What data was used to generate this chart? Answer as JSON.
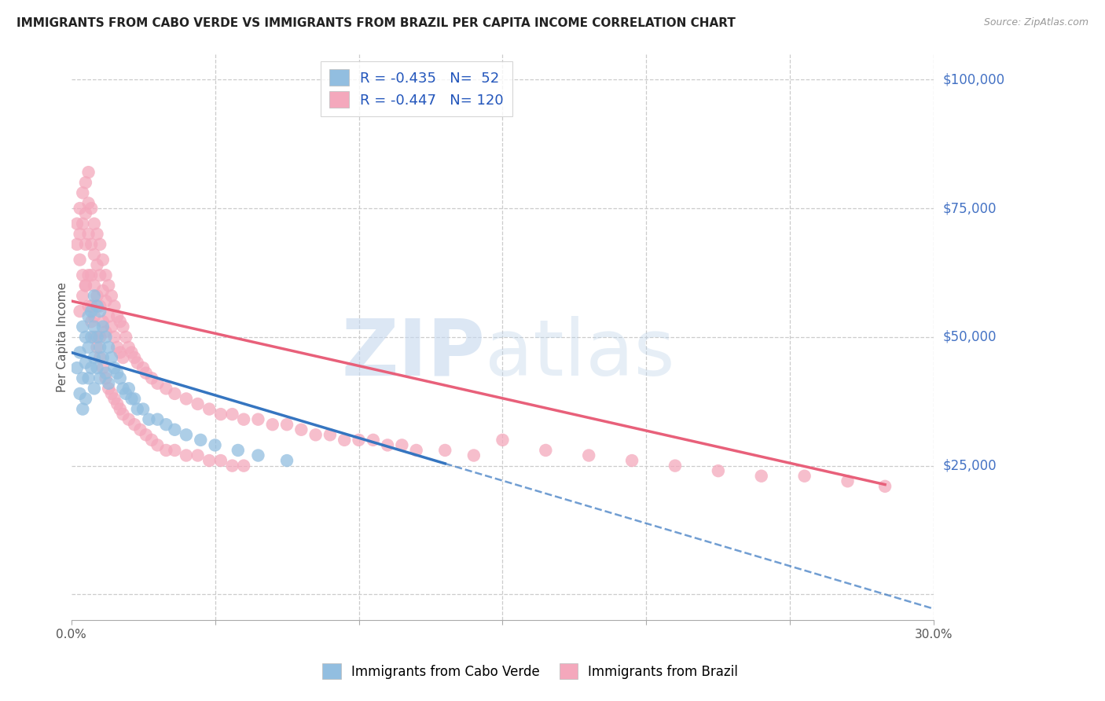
{
  "title": "IMMIGRANTS FROM CABO VERDE VS IMMIGRANTS FROM BRAZIL PER CAPITA INCOME CORRELATION CHART",
  "source": "Source: ZipAtlas.com",
  "ylabel": "Per Capita Income",
  "y_ticks": [
    0,
    25000,
    50000,
    75000,
    100000
  ],
  "y_tick_labels": [
    "",
    "$25,000",
    "$50,000",
    "$75,000",
    "$100,000"
  ],
  "x_min": 0.0,
  "x_max": 0.3,
  "y_min": -5000,
  "y_max": 105000,
  "cabo_verde_R": -0.435,
  "cabo_verde_N": 52,
  "brazil_R": -0.447,
  "brazil_N": 120,
  "cabo_verde_scatter_color": "#92BEE0",
  "brazil_scatter_color": "#F4A8BC",
  "cabo_verde_line_color": "#3575C0",
  "brazil_line_color": "#E8607A",
  "legend_label_1": "Immigrants from Cabo Verde",
  "legend_label_2": "Immigrants from Brazil",
  "cabo_verde_points_x": [
    0.002,
    0.003,
    0.003,
    0.004,
    0.004,
    0.004,
    0.005,
    0.005,
    0.005,
    0.006,
    0.006,
    0.006,
    0.007,
    0.007,
    0.007,
    0.008,
    0.008,
    0.008,
    0.008,
    0.009,
    0.009,
    0.009,
    0.01,
    0.01,
    0.01,
    0.011,
    0.011,
    0.012,
    0.012,
    0.013,
    0.013,
    0.014,
    0.015,
    0.016,
    0.017,
    0.018,
    0.019,
    0.02,
    0.021,
    0.022,
    0.023,
    0.025,
    0.027,
    0.03,
    0.033,
    0.036,
    0.04,
    0.045,
    0.05,
    0.058,
    0.065,
    0.075
  ],
  "cabo_verde_points_y": [
    44000,
    39000,
    47000,
    52000,
    42000,
    36000,
    50000,
    45000,
    38000,
    54000,
    48000,
    42000,
    55000,
    50000,
    44000,
    58000,
    52000,
    46000,
    40000,
    56000,
    50000,
    44000,
    55000,
    48000,
    42000,
    52000,
    46000,
    50000,
    43000,
    48000,
    41000,
    46000,
    44000,
    43000,
    42000,
    40000,
    39000,
    40000,
    38000,
    38000,
    36000,
    36000,
    34000,
    34000,
    33000,
    32000,
    31000,
    30000,
    29000,
    28000,
    27000,
    26000
  ],
  "brazil_points_x": [
    0.002,
    0.002,
    0.003,
    0.003,
    0.003,
    0.004,
    0.004,
    0.004,
    0.005,
    0.005,
    0.005,
    0.005,
    0.006,
    0.006,
    0.006,
    0.006,
    0.007,
    0.007,
    0.007,
    0.007,
    0.008,
    0.008,
    0.008,
    0.008,
    0.009,
    0.009,
    0.009,
    0.01,
    0.01,
    0.01,
    0.01,
    0.011,
    0.011,
    0.011,
    0.012,
    0.012,
    0.012,
    0.013,
    0.013,
    0.014,
    0.014,
    0.015,
    0.015,
    0.016,
    0.016,
    0.017,
    0.017,
    0.018,
    0.018,
    0.019,
    0.02,
    0.021,
    0.022,
    0.023,
    0.025,
    0.026,
    0.028,
    0.03,
    0.033,
    0.036,
    0.04,
    0.044,
    0.048,
    0.052,
    0.056,
    0.06,
    0.065,
    0.07,
    0.075,
    0.08,
    0.085,
    0.09,
    0.095,
    0.1,
    0.105,
    0.11,
    0.115,
    0.12,
    0.13,
    0.14,
    0.003,
    0.004,
    0.005,
    0.006,
    0.007,
    0.008,
    0.009,
    0.01,
    0.011,
    0.012,
    0.013,
    0.014,
    0.015,
    0.016,
    0.017,
    0.018,
    0.02,
    0.022,
    0.024,
    0.026,
    0.028,
    0.03,
    0.033,
    0.036,
    0.04,
    0.044,
    0.048,
    0.052,
    0.056,
    0.06,
    0.15,
    0.165,
    0.18,
    0.195,
    0.21,
    0.225,
    0.24,
    0.255,
    0.27,
    0.283
  ],
  "brazil_points_y": [
    68000,
    72000,
    75000,
    65000,
    70000,
    78000,
    72000,
    62000,
    80000,
    74000,
    68000,
    60000,
    82000,
    76000,
    70000,
    62000,
    75000,
    68000,
    62000,
    56000,
    72000,
    66000,
    60000,
    54000,
    70000,
    64000,
    58000,
    68000,
    62000,
    56000,
    50000,
    65000,
    59000,
    53000,
    62000,
    57000,
    51000,
    60000,
    54000,
    58000,
    52000,
    56000,
    50000,
    54000,
    48000,
    53000,
    47000,
    52000,
    46000,
    50000,
    48000,
    47000,
    46000,
    45000,
    44000,
    43000,
    42000,
    41000,
    40000,
    39000,
    38000,
    37000,
    36000,
    35000,
    35000,
    34000,
    34000,
    33000,
    33000,
    32000,
    31000,
    31000,
    30000,
    30000,
    30000,
    29000,
    29000,
    28000,
    28000,
    27000,
    55000,
    58000,
    60000,
    56000,
    53000,
    50000,
    48000,
    46000,
    44000,
    42000,
    40000,
    39000,
    38000,
    37000,
    36000,
    35000,
    34000,
    33000,
    32000,
    31000,
    30000,
    29000,
    28000,
    28000,
    27000,
    27000,
    26000,
    26000,
    25000,
    25000,
    30000,
    28000,
    27000,
    26000,
    25000,
    24000,
    23000,
    23000,
    22000,
    21000
  ],
  "cv_line_x_start": 0.0,
  "cv_line_x_solid_end": 0.13,
  "cv_line_x_dashed_end": 0.3,
  "cv_line_y_at_0": 47000,
  "cv_line_slope": -166000,
  "br_line_x_start": 0.0,
  "br_line_x_end": 0.283,
  "br_line_y_at_0": 57000,
  "br_line_slope": -126000
}
